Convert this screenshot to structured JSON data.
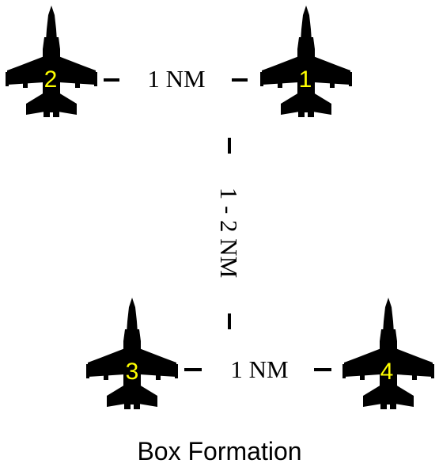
{
  "aircraft": [
    {
      "number": "2"
    },
    {
      "number": "1"
    },
    {
      "number": "3"
    },
    {
      "number": "4"
    }
  ],
  "distances": {
    "top": "1 NM",
    "vertical": "1 - 2 NM",
    "bottom": "1 NM"
  },
  "caption": "Box Formation",
  "colors": {
    "aircraft": "#000000",
    "number": "#ffff00",
    "text": "#000000"
  }
}
